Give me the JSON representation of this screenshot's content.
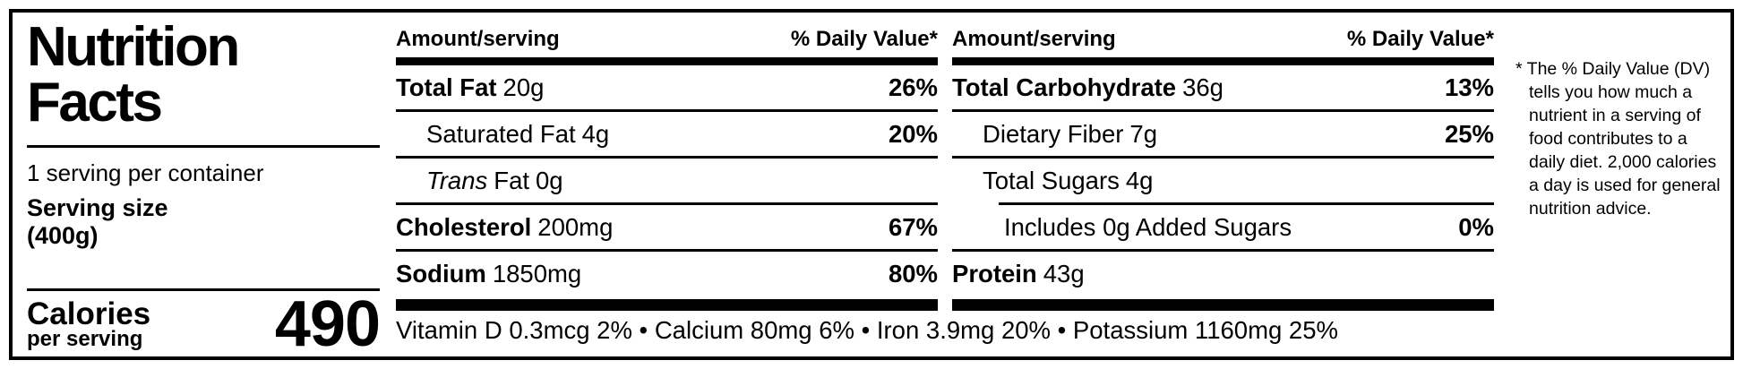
{
  "nutrition_label": {
    "title": {
      "line1": "Nutrition",
      "line2": "Facts"
    },
    "serving_info": {
      "servings_per_container": "1 serving per container",
      "serving_size_label": "Serving size",
      "serving_size_value": "(400g)"
    },
    "calories": {
      "label": "Calories",
      "sublabel": "per serving",
      "value": "490"
    },
    "columns": [
      {
        "header": {
          "amount": "Amount/serving",
          "daily_value": "% Daily Value*"
        },
        "rows": [
          {
            "name": "Total Fat",
            "amount": "20g",
            "daily_value": "26%"
          },
          {
            "name": "Saturated Fat",
            "amount": "4g",
            "daily_value": "20%"
          },
          {
            "name_italic": "Trans",
            "name": "Fat",
            "amount": "0g",
            "daily_value": ""
          },
          {
            "name": "Cholesterol",
            "amount": "200mg",
            "daily_value": "67%"
          },
          {
            "name": "Sodium",
            "amount": "1850mg",
            "daily_value": "80%"
          }
        ]
      },
      {
        "header": {
          "amount": "Amount/serving",
          "daily_value": "% Daily Value*"
        },
        "rows": [
          {
            "name": "Total Carbohydrate",
            "amount": "36g",
            "daily_value": "13%"
          },
          {
            "name": "Dietary Fiber",
            "amount": "7g",
            "daily_value": "25%"
          },
          {
            "name": "Total Sugars",
            "amount": "4g",
            "daily_value": ""
          },
          {
            "name": "Includes 0g Added Sugars",
            "amount": "",
            "daily_value": "0%"
          },
          {
            "name": "Protein",
            "amount": "43g",
            "daily_value": ""
          }
        ]
      }
    ],
    "micronutrients": "Vitamin D 0.3mcg 2% • Calcium 80mg 6% • Iron 3.9mg 20% • Potassium 1160mg 25%",
    "footnote": "* The % Daily Value (DV) tells you how much a nutrient in a serving of food contributes to a daily diet. 2,000 calories a day is used for general nutrition advice.",
    "colors": {
      "ink": "#000000",
      "background": "#ffffff"
    }
  }
}
